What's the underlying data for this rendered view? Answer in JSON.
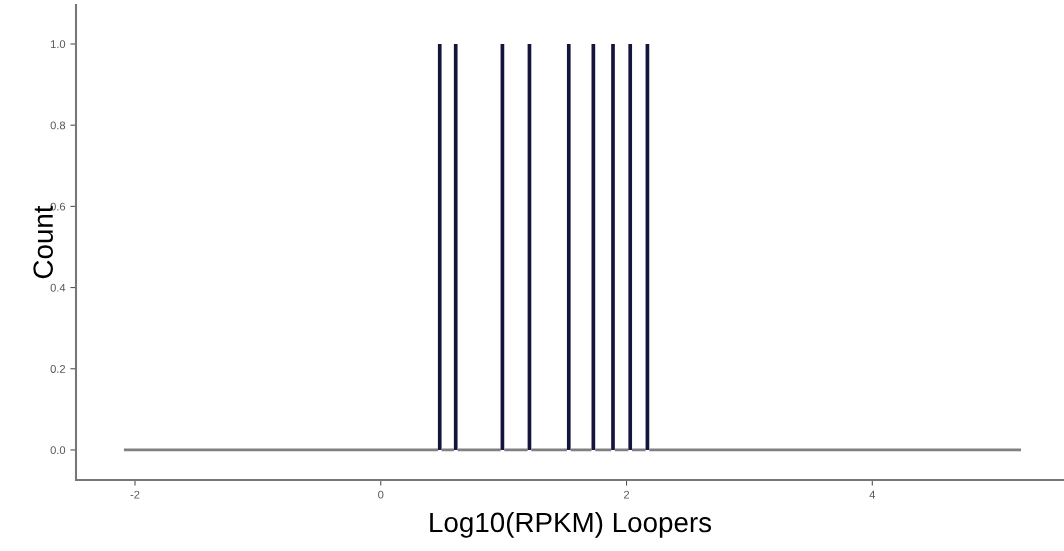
{
  "chart_data": {
    "type": "histogram",
    "xlabel": "Log10(RPKM) Loopers",
    "ylabel": "Count",
    "colors": [
      "#808080",
      "#14143c",
      "#808080",
      "#14143c",
      "#808080",
      "#14143c",
      "#808080",
      "#14143c",
      "#808080",
      "#14143c",
      "#808080",
      "#14143c",
      "#808080",
      "#14143c",
      "#808080",
      "#14143c",
      "#808080",
      "#14143c",
      "#808080"
    ],
    "bins": [
      -2.09,
      0.465,
      0.495,
      0.595,
      0.625,
      0.975,
      1.005,
      1.195,
      1.225,
      1.515,
      1.545,
      1.715,
      1.745,
      1.875,
      1.905,
      2.015,
      2.045,
      2.155,
      2.185,
      5.21
    ],
    "values": [
      0,
      1,
      0,
      1,
      0,
      1,
      0,
      1,
      0,
      1,
      0,
      1,
      0,
      1,
      0,
      1,
      0,
      1,
      0
    ],
    "xlim": [
      -2.48,
      5.56
    ],
    "ylim": [
      -0.074,
      1.096
    ],
    "xticks": [
      -2,
      0,
      2,
      4
    ],
    "yticks": [
      {
        "value": 0,
        "label": "0.0"
      },
      {
        "value": 0.2,
        "label": "0.2"
      },
      {
        "value": 0.4,
        "label": "0.4"
      },
      {
        "value": 0.6,
        "label": "0.6"
      },
      {
        "value": 0.8,
        "label": "0.8"
      },
      {
        "value": 1.0,
        "label": "1.0"
      }
    ],
    "grid": false
  }
}
